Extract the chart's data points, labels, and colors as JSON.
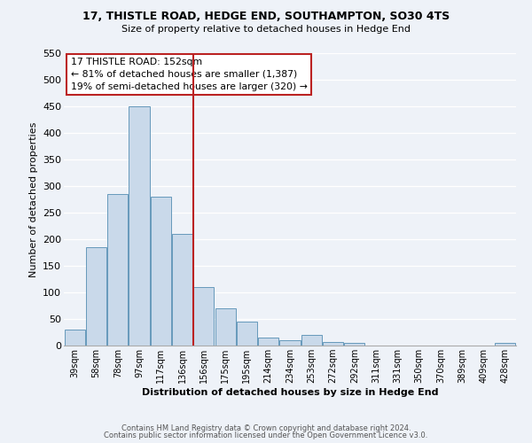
{
  "title": "17, THISTLE ROAD, HEDGE END, SOUTHAMPTON, SO30 4TS",
  "subtitle": "Size of property relative to detached houses in Hedge End",
  "xlabel": "Distribution of detached houses by size in Hedge End",
  "ylabel": "Number of detached properties",
  "bar_labels": [
    "39sqm",
    "58sqm",
    "78sqm",
    "97sqm",
    "117sqm",
    "136sqm",
    "156sqm",
    "175sqm",
    "195sqm",
    "214sqm",
    "234sqm",
    "253sqm",
    "272sqm",
    "292sqm",
    "311sqm",
    "331sqm",
    "350sqm",
    "370sqm",
    "389sqm",
    "409sqm",
    "428sqm"
  ],
  "bar_values": [
    30,
    185,
    285,
    450,
    280,
    210,
    110,
    70,
    45,
    15,
    10,
    20,
    7,
    5,
    0,
    0,
    0,
    0,
    0,
    0,
    5
  ],
  "bar_color": "#c9d9ea",
  "bar_edge_color": "#6699bb",
  "vline_color": "#bb2222",
  "annotation_title": "17 THISTLE ROAD: 152sqm",
  "annotation_line1": "← 81% of detached houses are smaller (1,387)",
  "annotation_line2": "19% of semi-detached houses are larger (320) →",
  "annotation_box_color": "#ffffff",
  "annotation_box_edge": "#bb2222",
  "ylim": [
    0,
    550
  ],
  "yticks": [
    0,
    50,
    100,
    150,
    200,
    250,
    300,
    350,
    400,
    450,
    500,
    550
  ],
  "background_color": "#eef2f8",
  "grid_color": "#ffffff",
  "footer1": "Contains HM Land Registry data © Crown copyright and database right 2024.",
  "footer2": "Contains public sector information licensed under the Open Government Licence v3.0."
}
